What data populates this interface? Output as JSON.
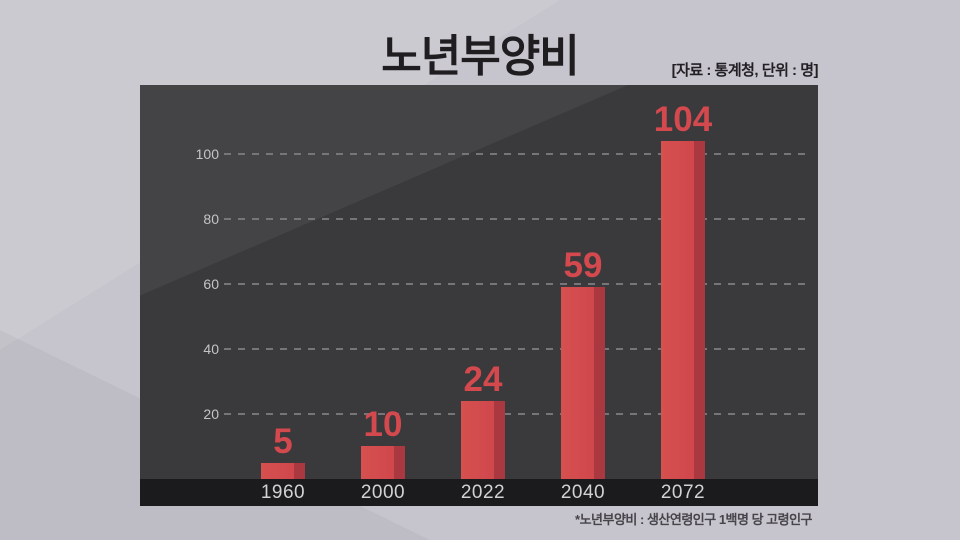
{
  "page": {
    "title": "노년부양비",
    "source_note": "[자료 : 통계청, 단위 : 명]",
    "footnote": "*노년부양비 : 생산연령인구 1백명 당 고령인구"
  },
  "colors": {
    "background": "#c6c4cc",
    "panel": "#3a393c",
    "axis_band": "#1b1a1d",
    "bar_face": "#d0474c",
    "bar_side": "#a93840",
    "value_label": "#d4494e",
    "gridline": "#77757a",
    "tick_label": "#c4c3c7",
    "category_label": "#d2d1d4",
    "title_text": "#201d20"
  },
  "chart_data": {
    "type": "bar",
    "title": "노년부양비",
    "subtitle": "[자료 : 통계청, 단위 : 명]",
    "categories": [
      "1960",
      "2000",
      "2022",
      "2040",
      "2072"
    ],
    "values": [
      5,
      10,
      24,
      59,
      104
    ],
    "yticks": [
      20,
      40,
      60,
      80,
      100
    ],
    "ylim": [
      0,
      110
    ],
    "xlabel": "",
    "ylabel": "",
    "grid": "horizontal-dashed",
    "legend": "none",
    "unit": "명",
    "source": "통계청",
    "note": "*노년부양비 : 생산연령인구 1백명 당 고령인구"
  }
}
